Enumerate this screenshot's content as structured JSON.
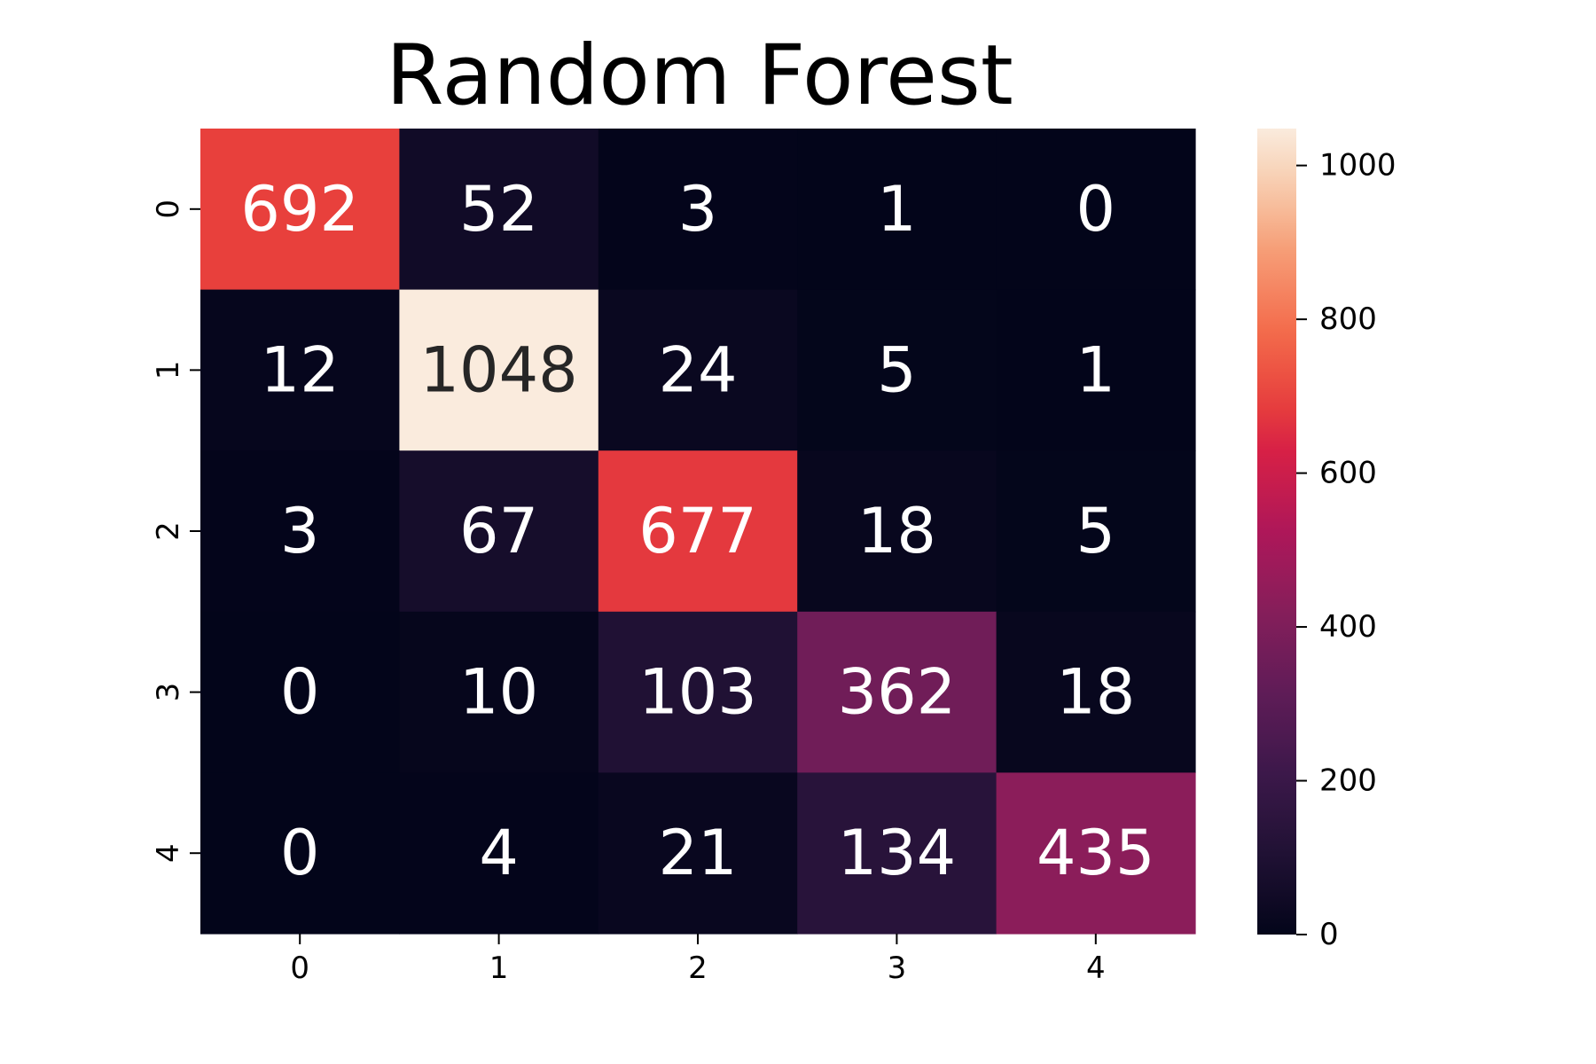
{
  "chart_data": {
    "type": "heatmap",
    "title": "Random Forest",
    "xlabel": "",
    "ylabel": "",
    "x_categories": [
      "0",
      "1",
      "2",
      "3",
      "4"
    ],
    "y_categories": [
      "0",
      "1",
      "2",
      "3",
      "4"
    ],
    "values": [
      [
        692,
        52,
        3,
        1,
        0
      ],
      [
        12,
        1048,
        24,
        5,
        1
      ],
      [
        3,
        67,
        677,
        18,
        5
      ],
      [
        0,
        10,
        103,
        362,
        18
      ],
      [
        0,
        4,
        21,
        134,
        435
      ]
    ],
    "colormap": "rocket",
    "value_range": [
      0,
      1048
    ],
    "colorbar": {
      "ticks": [
        0,
        200,
        400,
        600,
        800,
        1000
      ],
      "tick_labels": [
        "0",
        "200",
        "400",
        "600",
        "800",
        "1000"
      ]
    },
    "grid": false,
    "annotations": true
  }
}
